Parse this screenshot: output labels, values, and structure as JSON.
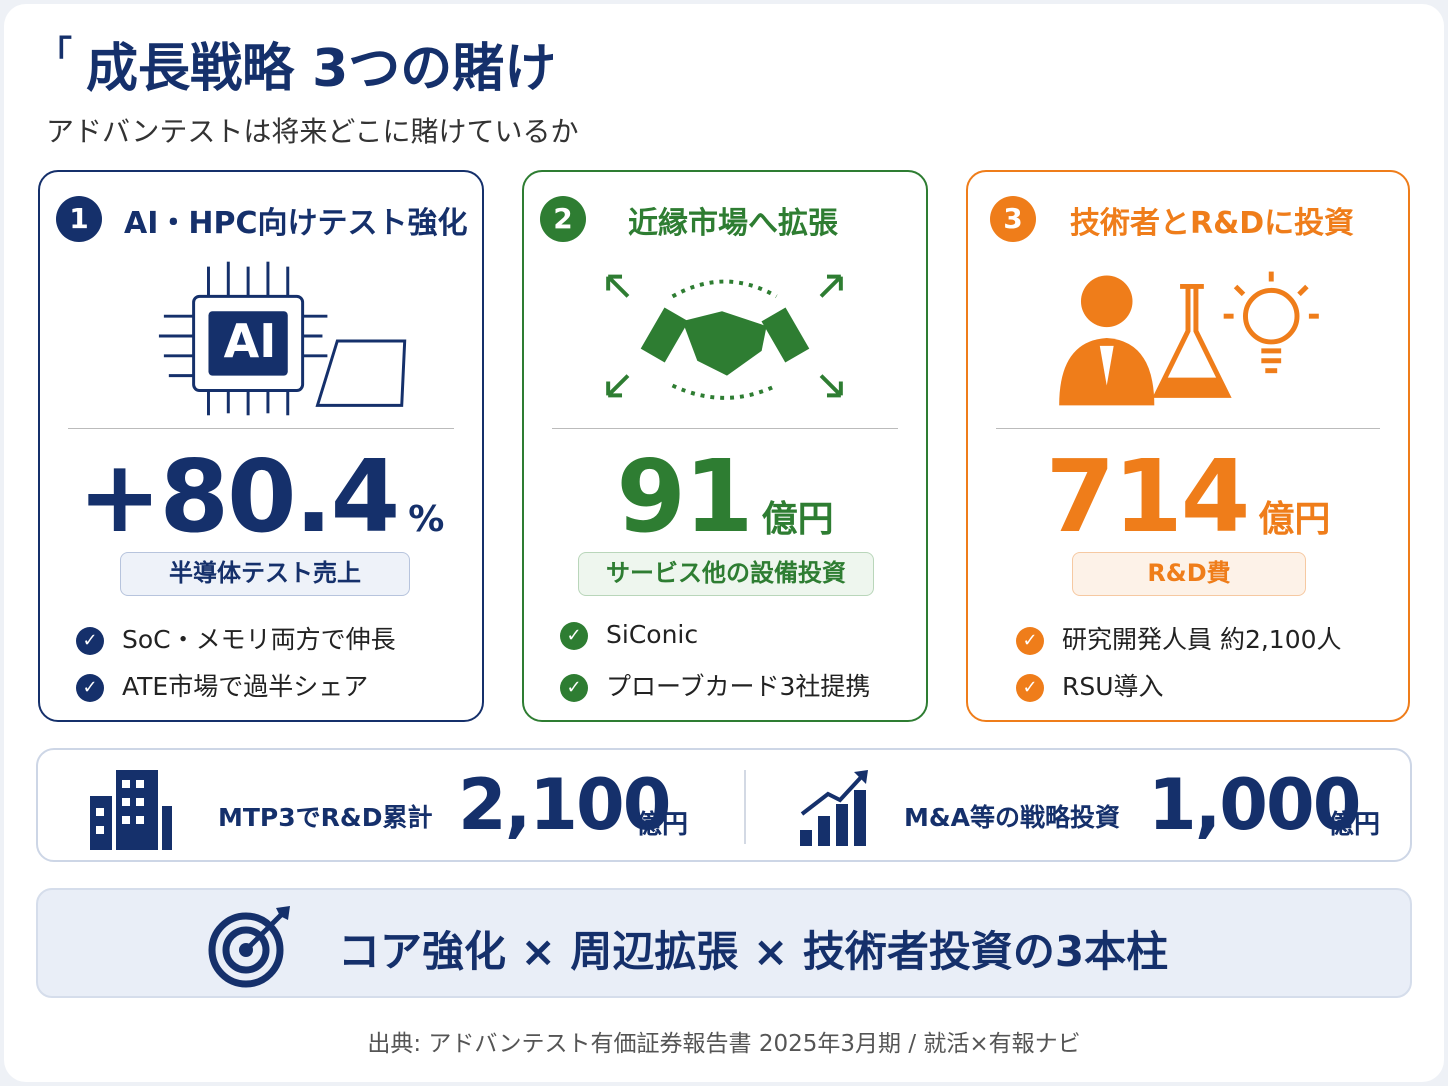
{
  "header": {
    "title_mark": "「",
    "title": "成長戦略 3つの賭け",
    "subtitle": "アドバンテストは将来どこに賭けているか"
  },
  "cards": [
    {
      "number": "1",
      "heading": "AI・HPC向けテスト強化",
      "icon_text": "AI",
      "value": "+80.4",
      "unit": "%",
      "label": "半導体テスト売上",
      "bullets": [
        "SoC・メモリ両方で伸長",
        "ATE市場で過半シェア"
      ]
    },
    {
      "number": "2",
      "heading": "近縁市場へ拡張",
      "value": "91",
      "unit": "億円",
      "label": "サービス他の設備投資",
      "bullets": [
        "SiConic",
        "プローブカード3社提携"
      ]
    },
    {
      "number": "3",
      "heading": "技術者とR&Dに投資",
      "value": "714",
      "unit": "億円",
      "label": "R&D費",
      "bullets": [
        "研究開発人員 約2,100人",
        "RSU導入"
      ]
    }
  ],
  "summary": [
    {
      "label": "MTP3でR&D累計",
      "value": "2,100",
      "unit": "億円"
    },
    {
      "label": "M&A等の戦略投資",
      "value": "1,000",
      "unit": "億円"
    }
  ],
  "banner": "コア強化 × 周辺拡張 × 技術者投資の3本柱",
  "footer": "出典: アドバンテスト有価証券報告書 2025年3月期 / 就活×有報ナビ"
}
